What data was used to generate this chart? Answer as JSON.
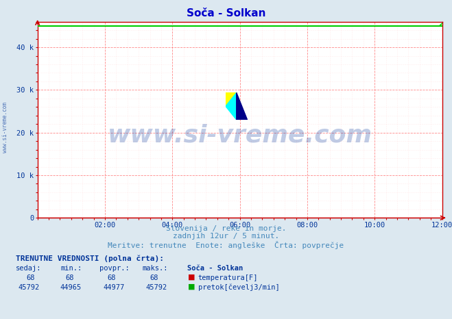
{
  "title": "Soča - Solkan",
  "title_color": "#0000cc",
  "title_fontsize": 11,
  "bg_color": "#dce8f0",
  "plot_bg_color": "#ffffff",
  "xmin": 0,
  "xmax": 144,
  "ymin": 0,
  "ymax": 46000,
  "yticks": [
    0,
    10000,
    20000,
    30000,
    40000
  ],
  "ytick_labels": [
    "0",
    "10 k",
    "20 k",
    "30 k",
    "40 k"
  ],
  "xtick_positions": [
    24,
    48,
    72,
    96,
    120,
    144
  ],
  "xtick_labels": [
    "02:00",
    "04:00",
    "06:00",
    "08:00",
    "10:00",
    "12:00"
  ],
  "grid_major_color": "#ff8888",
  "grid_minor_color": "#ffdddd",
  "axis_color": "#cc0000",
  "line_green_y": 44977,
  "line_red_y": 68,
  "line_green_color": "#00cc00",
  "line_red_color": "#cc0000",
  "watermark_text": "www.si-vreme.com",
  "watermark_color": "#003399",
  "watermark_alpha": 0.25,
  "watermark_fontsize": 26,
  "sidebar_text": "www.si-vreme.com",
  "sidebar_color": "#003399",
  "subtitle1": "Slovenija / reke in morje.",
  "subtitle2": "zadnjih 12ur / 5 minut.",
  "subtitle3": "Meritve: trenutne  Enote: angleške  Črta: povprečje",
  "subtitle_color": "#4488bb",
  "subtitle_fontsize": 8,
  "table_header": "TRENUTNE VREDNOSTI (polna črta):",
  "table_col1": "sedaj:",
  "table_col2": "min.:",
  "table_col3": "povpr.:",
  "table_col4": "maks.:",
  "table_col5": "Soča - Solkan",
  "row1_vals": [
    "68",
    "68",
    "68",
    "68"
  ],
  "row1_label": "temperatura[F]",
  "row1_color": "#cc0000",
  "row2_vals": [
    "45792",
    "44965",
    "44977",
    "45792"
  ],
  "row2_label": "pretok[čevelj3/min]",
  "row2_color": "#00aa00",
  "table_color": "#003399",
  "table_fontsize": 7.5
}
